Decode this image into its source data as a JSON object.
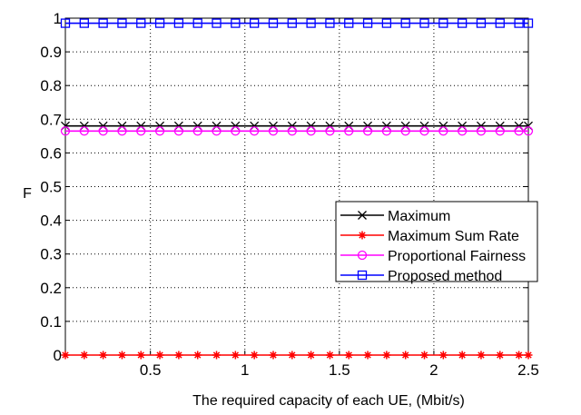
{
  "chart_data": {
    "type": "line",
    "title": "",
    "xlabel": "The required capacity of each UE, (Mbit/s)",
    "ylabel": "F",
    "xlim": [
      0.05,
      2.5
    ],
    "ylim": [
      0,
      1
    ],
    "xticks": [
      0.5,
      1,
      1.5,
      2,
      2.5
    ],
    "xtick_labels": [
      "0.5",
      "1",
      "1.5",
      "2",
      "2.5"
    ],
    "yticks": [
      0,
      0.1,
      0.2,
      0.3,
      0.4,
      0.5,
      0.6,
      0.7,
      0.8,
      0.9,
      1
    ],
    "ytick_labels": [
      "0",
      "0.1",
      "0.2",
      "0.3",
      "0.4",
      "0.5",
      "0.6",
      "0.7",
      "0.8",
      "0.9",
      "1"
    ],
    "grid": true,
    "legend_position": "center-right",
    "x": [
      0.05,
      0.15,
      0.25,
      0.35,
      0.45,
      0.55,
      0.65,
      0.75,
      0.85,
      0.95,
      1.05,
      1.15,
      1.25,
      1.35,
      1.45,
      1.55,
      1.65,
      1.75,
      1.85,
      1.95,
      2.05,
      2.15,
      2.25,
      2.35,
      2.45,
      2.5
    ],
    "series": [
      {
        "name": "Maximum",
        "marker": "x",
        "color": "#000000",
        "values": [
          0.68,
          0.68,
          0.68,
          0.68,
          0.68,
          0.68,
          0.68,
          0.68,
          0.68,
          0.68,
          0.68,
          0.68,
          0.68,
          0.68,
          0.68,
          0.68,
          0.68,
          0.68,
          0.68,
          0.68,
          0.68,
          0.68,
          0.68,
          0.68,
          0.68,
          0.68
        ]
      },
      {
        "name": "Maximum Sum Rate",
        "marker": "star",
        "color": "#ff0000",
        "values": [
          0,
          0,
          0,
          0,
          0,
          0,
          0,
          0,
          0,
          0,
          0,
          0,
          0,
          0,
          0,
          0,
          0,
          0,
          0,
          0,
          0,
          0,
          0,
          0,
          0,
          0
        ]
      },
      {
        "name": "Proportional Fairness",
        "marker": "circle",
        "color": "#ff00ff",
        "values": [
          0.665,
          0.665,
          0.665,
          0.665,
          0.665,
          0.665,
          0.665,
          0.665,
          0.665,
          0.665,
          0.665,
          0.665,
          0.665,
          0.665,
          0.665,
          0.665,
          0.665,
          0.665,
          0.665,
          0.665,
          0.665,
          0.665,
          0.665,
          0.665,
          0.665,
          0.665
        ]
      },
      {
        "name": "Proposed method",
        "marker": "square",
        "color": "#0000ff",
        "values": [
          0.985,
          0.985,
          0.985,
          0.985,
          0.985,
          0.985,
          0.985,
          0.985,
          0.985,
          0.985,
          0.985,
          0.985,
          0.985,
          0.985,
          0.985,
          0.985,
          0.985,
          0.985,
          0.985,
          0.985,
          0.985,
          0.985,
          0.985,
          0.985,
          0.985,
          0.985
        ]
      }
    ]
  }
}
